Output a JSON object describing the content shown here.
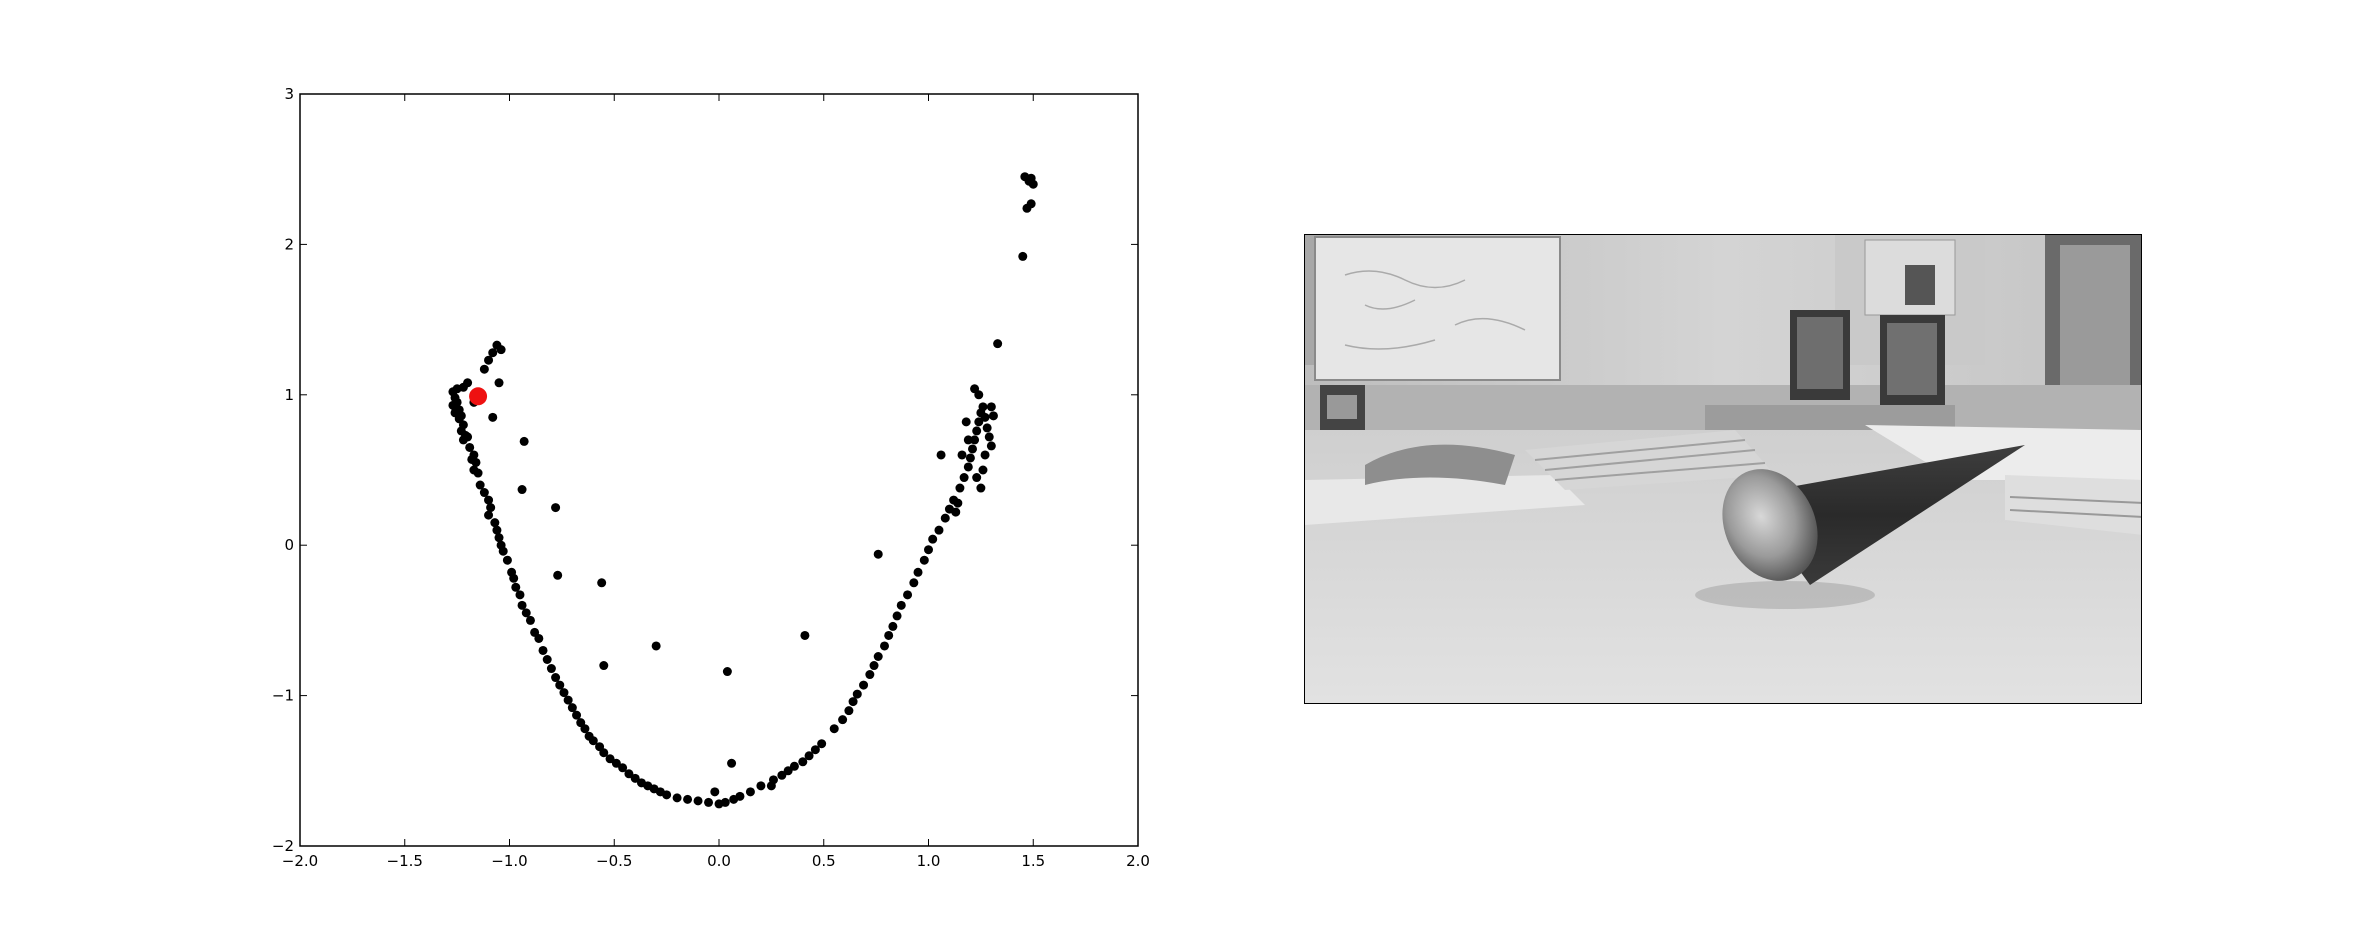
{
  "chart_data": {
    "type": "scatter",
    "title": "",
    "xlabel": "",
    "ylabel": "",
    "xlim": [
      -2.0,
      2.0
    ],
    "ylim": [
      -2,
      3
    ],
    "grid": false,
    "legend": "none",
    "xticks": [
      -2.0,
      -1.5,
      -1.0,
      -0.5,
      0.0,
      0.5,
      1.0,
      1.5,
      2.0
    ],
    "xtick_labels": [
      "−2.0",
      "−1.5",
      "−1.0",
      "−0.5",
      "0.0",
      "0.5",
      "1.0",
      "1.5",
      "2.0"
    ],
    "yticks": [
      -2,
      -1,
      0,
      1,
      2,
      3
    ],
    "ytick_labels": [
      "−2",
      "−1",
      "0",
      "1",
      "2",
      "3"
    ],
    "series": [
      {
        "color": "#000000",
        "marker": "circle",
        "points": [
          [
            -1.27,
            1.02
          ],
          [
            -1.26,
            0.98
          ],
          [
            -1.25,
            0.95
          ],
          [
            -1.27,
            0.93
          ],
          [
            -1.24,
            0.9
          ],
          [
            -1.26,
            0.88
          ],
          [
            -1.23,
            0.86
          ],
          [
            -1.25,
            1.04
          ],
          [
            -1.22,
            1.05
          ],
          [
            -1.24,
            0.84
          ],
          [
            -1.22,
            0.8
          ],
          [
            -1.23,
            0.76
          ],
          [
            -1.21,
            0.73
          ],
          [
            -1.22,
            0.7
          ],
          [
            -1.2,
            0.72
          ],
          [
            -1.19,
            0.65
          ],
          [
            -1.17,
            0.6
          ],
          [
            -1.18,
            0.57
          ],
          [
            -1.16,
            0.55
          ],
          [
            -1.17,
            0.5
          ],
          [
            -1.15,
            0.48
          ],
          [
            -1.14,
            0.4
          ],
          [
            -1.12,
            0.35
          ],
          [
            -1.1,
            0.3
          ],
          [
            -1.09,
            0.25
          ],
          [
            -1.1,
            0.2
          ],
          [
            -1.07,
            0.15
          ],
          [
            -1.06,
            0.1
          ],
          [
            -1.05,
            0.05
          ],
          [
            -1.04,
            0.0
          ],
          [
            -1.03,
            -0.04
          ],
          [
            -1.01,
            -0.1
          ],
          [
            -0.99,
            -0.18
          ],
          [
            -0.98,
            -0.22
          ],
          [
            -0.97,
            -0.28
          ],
          [
            -0.95,
            -0.33
          ],
          [
            -0.94,
            -0.4
          ],
          [
            -0.92,
            -0.45
          ],
          [
            -0.9,
            -0.5
          ],
          [
            -0.88,
            -0.58
          ],
          [
            -0.86,
            -0.62
          ],
          [
            -0.84,
            -0.7
          ],
          [
            -0.82,
            -0.76
          ],
          [
            -0.8,
            -0.82
          ],
          [
            -0.78,
            -0.88
          ],
          [
            -0.76,
            -0.93
          ],
          [
            -0.74,
            -0.98
          ],
          [
            -0.72,
            -1.03
          ],
          [
            -0.7,
            -1.08
          ],
          [
            -0.68,
            -1.13
          ],
          [
            -0.66,
            -1.18
          ],
          [
            -0.64,
            -1.22
          ],
          [
            -0.62,
            -1.27
          ],
          [
            -0.6,
            -1.3
          ],
          [
            -0.57,
            -1.34
          ],
          [
            -0.55,
            -1.38
          ],
          [
            -0.52,
            -1.42
          ],
          [
            -0.49,
            -1.45
          ],
          [
            -0.46,
            -1.48
          ],
          [
            -0.43,
            -1.52
          ],
          [
            -0.4,
            -1.55
          ],
          [
            -0.37,
            -1.58
          ],
          [
            -0.34,
            -1.6
          ],
          [
            -0.31,
            -1.62
          ],
          [
            -0.28,
            -1.64
          ],
          [
            -0.25,
            -1.66
          ],
          [
            -0.2,
            -1.68
          ],
          [
            -0.15,
            -1.69
          ],
          [
            -0.1,
            -1.7
          ],
          [
            -0.05,
            -1.71
          ],
          [
            0.0,
            -1.72
          ],
          [
            0.03,
            -1.71
          ],
          [
            0.07,
            -1.69
          ],
          [
            0.1,
            -1.67
          ],
          [
            0.15,
            -1.64
          ],
          [
            0.2,
            -1.6
          ],
          [
            0.26,
            -1.56
          ],
          [
            0.3,
            -1.53
          ],
          [
            0.33,
            -1.5
          ],
          [
            0.36,
            -1.47
          ],
          [
            0.4,
            -1.44
          ],
          [
            0.43,
            -1.4
          ],
          [
            0.46,
            -1.36
          ],
          [
            0.49,
            -1.32
          ],
          [
            0.55,
            -1.22
          ],
          [
            0.59,
            -1.16
          ],
          [
            0.62,
            -1.1
          ],
          [
            0.64,
            -1.04
          ],
          [
            0.66,
            -0.99
          ],
          [
            0.69,
            -0.93
          ],
          [
            0.72,
            -0.86
          ],
          [
            0.74,
            -0.8
          ],
          [
            0.76,
            -0.74
          ],
          [
            0.79,
            -0.67
          ],
          [
            0.81,
            -0.6
          ],
          [
            0.83,
            -0.54
          ],
          [
            0.85,
            -0.47
          ],
          [
            0.87,
            -0.4
          ],
          [
            0.9,
            -0.33
          ],
          [
            0.93,
            -0.25
          ],
          [
            0.95,
            -0.18
          ],
          [
            0.98,
            -0.1
          ],
          [
            1.0,
            -0.03
          ],
          [
            1.02,
            0.04
          ],
          [
            1.05,
            0.1
          ],
          [
            1.08,
            0.18
          ],
          [
            1.1,
            0.24
          ],
          [
            1.12,
            0.3
          ],
          [
            1.15,
            0.38
          ],
          [
            1.17,
            0.45
          ],
          [
            1.19,
            0.52
          ],
          [
            1.2,
            0.58
          ],
          [
            1.21,
            0.64
          ],
          [
            1.22,
            0.7
          ],
          [
            1.23,
            0.76
          ],
          [
            1.24,
            0.82
          ],
          [
            1.25,
            0.88
          ],
          [
            1.26,
            0.92
          ],
          [
            1.27,
            0.85
          ],
          [
            1.28,
            0.78
          ],
          [
            1.29,
            0.72
          ],
          [
            1.3,
            0.66
          ],
          [
            1.22,
            1.04
          ],
          [
            1.24,
            1.0
          ],
          [
            1.3,
            0.92
          ],
          [
            1.31,
            0.86
          ],
          [
            1.18,
            0.82
          ],
          [
            1.19,
            0.7
          ],
          [
            1.16,
            0.6
          ],
          [
            1.27,
            0.6
          ],
          [
            1.26,
            0.5
          ],
          [
            1.23,
            0.45
          ],
          [
            1.25,
            0.38
          ],
          [
            1.14,
            0.28
          ],
          [
            1.13,
            0.22
          ],
          [
            1.06,
            0.6
          ],
          [
            1.33,
            1.34
          ],
          [
            1.45,
            1.92
          ],
          [
            1.47,
            2.24
          ],
          [
            1.48,
            2.42
          ],
          [
            1.49,
            2.44
          ],
          [
            1.5,
            2.4
          ],
          [
            1.49,
            2.27
          ],
          [
            1.46,
            2.45
          ],
          [
            -1.06,
            1.33
          ],
          [
            -1.04,
            1.3
          ],
          [
            -1.08,
            1.28
          ],
          [
            -1.1,
            1.23
          ],
          [
            -1.12,
            1.17
          ],
          [
            -1.05,
            1.08
          ],
          [
            -1.08,
            0.85
          ],
          [
            -0.93,
            0.69
          ],
          [
            -0.94,
            0.37
          ],
          [
            -0.78,
            0.25
          ],
          [
            -0.77,
            -0.2
          ],
          [
            -0.56,
            -0.25
          ],
          [
            -0.55,
            -0.8
          ],
          [
            -0.3,
            -0.67
          ],
          [
            0.04,
            -0.84
          ],
          [
            0.06,
            -1.45
          ],
          [
            0.41,
            -0.6
          ],
          [
            0.76,
            -0.06
          ],
          [
            -0.02,
            -1.64
          ],
          [
            0.25,
            -1.6
          ],
          [
            -1.2,
            1.08
          ],
          [
            -1.17,
            0.95
          ]
        ]
      },
      {
        "color": "#ee1111",
        "marker": "circle",
        "points": [
          [
            -1.15,
            0.99
          ]
        ]
      }
    ]
  },
  "image_panel": {
    "subject": "grayscale-photo-of-office-desk-with-metallic-cone"
  }
}
